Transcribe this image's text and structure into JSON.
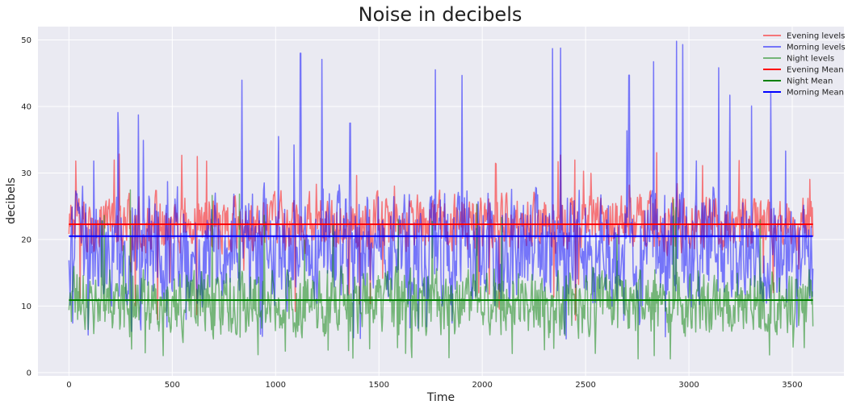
{
  "chart_data": {
    "type": "line",
    "title": "Noise in decibels",
    "xlabel": "Time",
    "ylabel": "decibels",
    "xlim": [
      -150,
      3750
    ],
    "ylim": [
      -0.5,
      52
    ],
    "xticks": [
      0,
      500,
      1000,
      1500,
      2000,
      2500,
      3000,
      3500
    ],
    "yticks": [
      0,
      10,
      20,
      30,
      40,
      50
    ],
    "grid": true,
    "legend_position": "top-right",
    "x_range": [
      0,
      3600
    ],
    "series": [
      {
        "name": "Evening levels",
        "kind": "noise",
        "color": "#ff0000",
        "opacity": 0.5,
        "center": 22.3,
        "min": 7.5,
        "max": 33.5,
        "typical_low": 17,
        "typical_high": 28
      },
      {
        "name": "Morning levels",
        "kind": "noise",
        "color": "#0000ff",
        "opacity": 0.5,
        "center": 20.5,
        "min": 5,
        "max": 49.8,
        "typical_low": 8,
        "typical_high": 30,
        "peaks": [
          {
            "x": 120,
            "y": 31.8
          },
          {
            "x": 360,
            "y": 34.9
          },
          {
            "x": 1120,
            "y": 48
          },
          {
            "x": 1360,
            "y": 37.5
          },
          {
            "x": 2340,
            "y": 48.7
          },
          {
            "x": 2710,
            "y": 44.7
          },
          {
            "x": 2940,
            "y": 49.8
          },
          {
            "x": 2970,
            "y": 49.3
          }
        ]
      },
      {
        "name": "Night levels",
        "kind": "noise",
        "color": "#008000",
        "opacity": 0.5,
        "center": 10.9,
        "min": 2,
        "max": 29,
        "typical_low": 4,
        "typical_high": 17
      },
      {
        "name": "Evening Mean",
        "kind": "mean",
        "color": "#ff0000",
        "opacity": 1,
        "y": 22.3
      },
      {
        "name": "Night Mean",
        "kind": "mean",
        "color": "#008000",
        "opacity": 1,
        "y": 10.9
      },
      {
        "name": "Morning Mean",
        "kind": "mean",
        "color": "#0000ff",
        "opacity": 1,
        "y": 20.5
      }
    ]
  }
}
